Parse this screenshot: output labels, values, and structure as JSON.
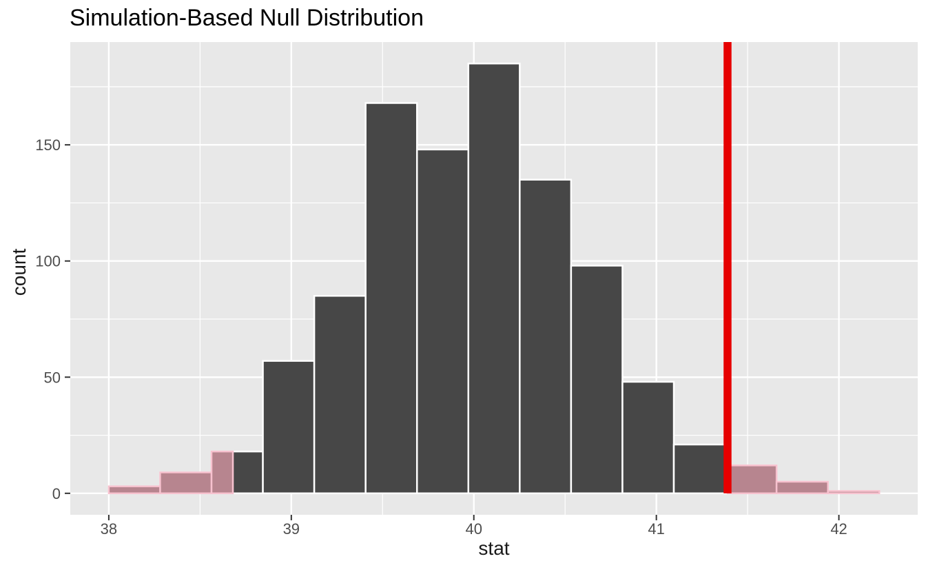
{
  "title": "Simulation-Based Null Distribution",
  "colors": {
    "background": "#FFFFFF",
    "panel_bg": "#E8E8E8",
    "grid_major": "#FFFFFF",
    "grid_minor": "#FFFFFF",
    "bar_fill": "#474747",
    "bar_stroke": "#FFFFFF",
    "shade_fill": "#B7858F",
    "shade_stroke": "#F7C2CF",
    "observed_line": "#E60000",
    "tick_label": "#4D4D4D",
    "axis_title": "#1A1A1A",
    "title_color": "#000000",
    "tick_mark": "#333333"
  },
  "chart_data": {
    "type": "histogram",
    "title": "Simulation-Based Null Distribution",
    "xlabel": "stat",
    "ylabel": "count",
    "bin_start": 38.0,
    "bin_width": 0.28143,
    "counts": [
      3,
      9,
      18,
      57,
      85,
      168,
      148,
      185,
      135,
      98,
      48,
      21,
      12,
      5,
      1
    ],
    "x_ticks": [
      38,
      39,
      40,
      41,
      42
    ],
    "x_minor_ticks": [
      38.5,
      39.5,
      40.5,
      41.5
    ],
    "y_ticks": [
      0,
      50,
      100,
      150
    ],
    "y_minor_ticks": [
      25,
      75,
      125,
      175
    ],
    "xlim": [
      37.789,
      42.432
    ],
    "ylim": [
      -9.25,
      194.25
    ],
    "observed_stat": 41.39,
    "shade": {
      "direction": "two-sided",
      "left_cutoff": 38.68,
      "right_cutoff": 41.39
    },
    "grid": true,
    "legend": "none"
  }
}
